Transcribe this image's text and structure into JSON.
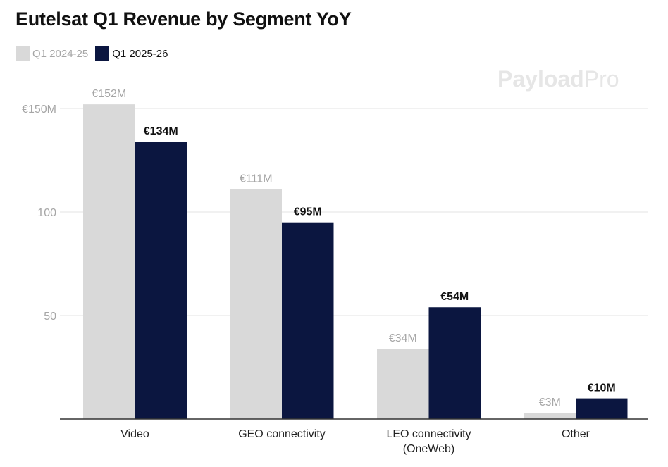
{
  "chart_data": {
    "type": "bar",
    "title": "Eutelsat Q1 Revenue by Segment YoY",
    "categories": [
      "Video",
      "GEO connectivity",
      "LEO connectivity\n(OneWeb)",
      "Other"
    ],
    "series": [
      {
        "name": "Q1 2024-25",
        "values": [
          152,
          111,
          34,
          3
        ],
        "labels": [
          "€152M",
          "€111M",
          "€34M",
          "€3M"
        ],
        "color": "#d9d9d9",
        "label_color": "#a6a6a6"
      },
      {
        "name": "Q1 2025-26",
        "values": [
          134,
          95,
          54,
          10
        ],
        "labels": [
          "€134M",
          "€95M",
          "€54M",
          "€10M"
        ],
        "color": "#0b1640",
        "label_color": "#111111"
      }
    ],
    "yticks": [
      {
        "value": 50,
        "label": "50"
      },
      {
        "value": 100,
        "label": "100"
      },
      {
        "value": 150,
        "label": "€150M"
      }
    ],
    "ylim": [
      0,
      150
    ],
    "xlabel": "",
    "ylabel": "",
    "grid": true,
    "legend": "top-left"
  },
  "watermark": {
    "bold": "Payload",
    "light": "Pro"
  }
}
